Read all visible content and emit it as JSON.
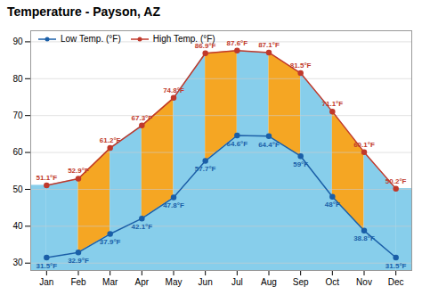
{
  "chart_data": {
    "type": "line",
    "title": "Temperature - Payson, AZ",
    "categories": [
      "Jan",
      "Feb",
      "Mar",
      "Apr",
      "May",
      "Jun",
      "Jul",
      "Aug",
      "Sep",
      "Oct",
      "Nov",
      "Dec"
    ],
    "series": [
      {
        "name": "Low Temp. (°F)",
        "color": "#1a5fa8",
        "marker": "circle",
        "values": [
          31.5,
          32.9,
          37.9,
          42.1,
          47.8,
          57.7,
          64.6,
          64.4,
          59.0,
          48.0,
          38.8,
          31.5
        ],
        "value_labels": [
          "31.5°F",
          "32.9°F",
          "37.9°F",
          "42.1°F",
          "47.8°F",
          "57.7°F",
          "64.6°F",
          "64.4°F",
          "59°F",
          "48°F",
          "38.8°F",
          "31.5°F"
        ]
      },
      {
        "name": "High Temp. (°F)",
        "color": "#c0392b",
        "marker": "circle",
        "values": [
          51.1,
          52.9,
          61.2,
          67.3,
          74.8,
          86.9,
          87.6,
          87.1,
          81.5,
          71.1,
          60.1,
          50.2
        ],
        "value_labels": [
          "51.1°F",
          "52.9°F",
          "61.2°F",
          "67.3°F",
          "74.8°F",
          "86.9°F",
          "87.6°F",
          "87.1°F",
          "81.5°F",
          "71.1°F",
          "60.1°F",
          "50.2°F"
        ]
      }
    ],
    "ylim": [
      28,
      93
    ],
    "yticks": [
      30,
      40,
      50,
      60,
      70,
      80,
      90
    ],
    "grid": true,
    "legend": "upper left",
    "data_labels": true,
    "color": "#87ceeb",
    "colors": [
      "#87ceeb",
      "#f5a623",
      "#87ceeb",
      "#f5a623",
      "#87ceeb",
      "#f5a623",
      "#87ceeb",
      "#f5a623",
      "#87ceeb",
      "#f5a623",
      "#87ceeb"
    ]
  }
}
